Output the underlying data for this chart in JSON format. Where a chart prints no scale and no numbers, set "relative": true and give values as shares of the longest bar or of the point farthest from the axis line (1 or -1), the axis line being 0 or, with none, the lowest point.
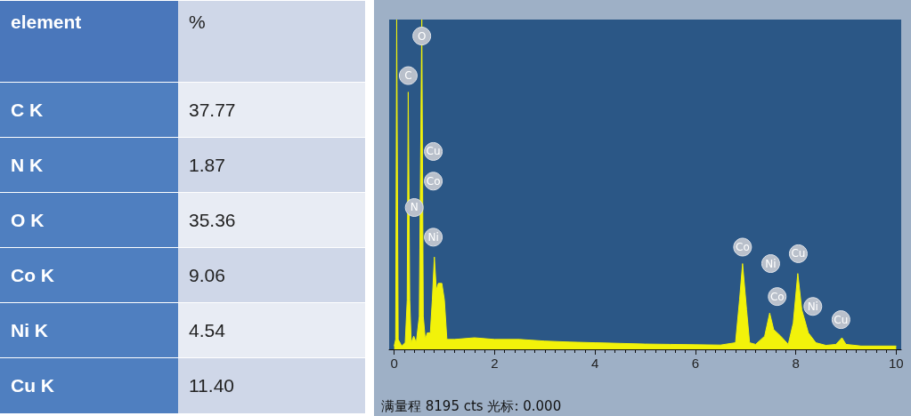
{
  "chart_data": [
    {
      "type": "other",
      "xlabel": "element",
      "ylabel": "%",
      "categories": [
        "C K",
        "N K",
        "O K",
        "Co K",
        "Ni K",
        "Cu K"
      ],
      "value_labels": [
        "37.77",
        "1.87",
        "35.36",
        "9.06",
        "4.54",
        "11.40"
      ]
    },
    {
      "type": "area",
      "relative": true,
      "xlim": [
        -0.1,
        10.1
      ],
      "xticks": [
        0,
        2,
        4,
        6,
        8,
        10
      ],
      "grid": false,
      "series": [
        {
          "color": "#f2f20a",
          "x": [
            0,
            0.03,
            0.05,
            0.08,
            0.15,
            0.22,
            0.26,
            0.28,
            0.31,
            0.34,
            0.39,
            0.44,
            0.5,
            0.55,
            0.58,
            0.62,
            0.66,
            0.72,
            0.76,
            0.8,
            0.84,
            0.88,
            0.95,
            1.0,
            1.05,
            1.2,
            1.6,
            2,
            2.5,
            3,
            3.5,
            4,
            4.5,
            5,
            5.5,
            6,
            6.5,
            6.8,
            6.88,
            6.94,
            7.02,
            7.08,
            7.2,
            7.38,
            7.48,
            7.56,
            7.7,
            7.85,
            7.95,
            8.04,
            8.12,
            8.25,
            8.4,
            8.6,
            8.8,
            8.92,
            9.0,
            9.3,
            10
          ],
          "values": [
            0.01,
            0.03,
            1,
            0.03,
            0.01,
            0.02,
            0.15,
            0.78,
            0.15,
            0.02,
            0.04,
            0.02,
            0.1,
            1,
            0.1,
            0.03,
            0.05,
            0.05,
            0.15,
            0.28,
            0.18,
            0.2,
            0.2,
            0.15,
            0.03,
            0.03,
            0.035,
            0.03,
            0.03,
            0.025,
            0.022,
            0.02,
            0.018,
            0.016,
            0.015,
            0.014,
            0.013,
            0.02,
            0.15,
            0.26,
            0.12,
            0.02,
            0.015,
            0.04,
            0.11,
            0.06,
            0.04,
            0.015,
            0.08,
            0.23,
            0.12,
            0.05,
            0.02,
            0.012,
            0.015,
            0.035,
            0.015,
            0.01,
            0.01
          ]
        }
      ],
      "annotations": [
        {
          "text": "O",
          "x": 0.55,
          "y": 0.95
        },
        {
          "text": "C",
          "x": 0.28,
          "y": 0.83
        },
        {
          "text": "Cu",
          "x": 0.78,
          "y": 0.6
        },
        {
          "text": "Co",
          "x": 0.78,
          "y": 0.51
        },
        {
          "text": "N",
          "x": 0.4,
          "y": 0.43
        },
        {
          "text": "Ni",
          "x": 0.78,
          "y": 0.34
        },
        {
          "text": "Co",
          "x": 6.94,
          "y": 0.31
        },
        {
          "text": "Ni",
          "x": 7.5,
          "y": 0.26
        },
        {
          "text": "Co",
          "x": 7.63,
          "y": 0.16
        },
        {
          "text": "Cu",
          "x": 8.05,
          "y": 0.29
        },
        {
          "text": "Ni",
          "x": 8.34,
          "y": 0.13
        },
        {
          "text": "Cu",
          "x": 8.9,
          "y": 0.09
        },
        "满量程 8195 cts 光标: 0.000"
      ]
    }
  ]
}
